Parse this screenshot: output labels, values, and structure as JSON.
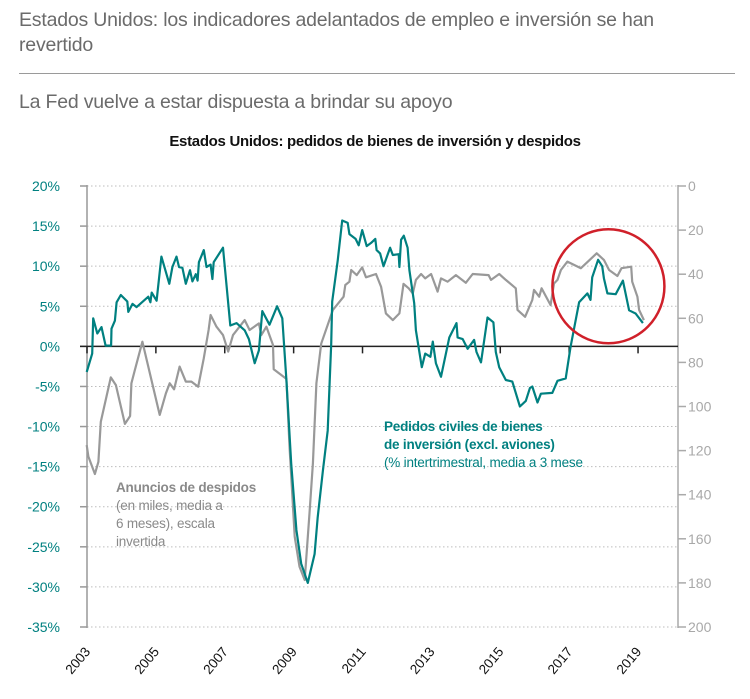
{
  "header": {
    "title": "Estados Unidos: los indicadores adelantados de empleo e inversión se han revertido",
    "subtitle": "La Fed vuelve a estar dispuesta a brindar su apoyo"
  },
  "chart_data": {
    "type": "line",
    "title": "Estados Unidos: pedidos de bienes de inversión y despidos",
    "x_ticks": [
      "2003",
      "2005",
      "2007",
      "2009",
      "2011",
      "2013",
      "2015",
      "2017",
      "2019"
    ],
    "xlim": [
      2003,
      2019.2
    ],
    "y_left": {
      "ticks": [
        "20%",
        "15%",
        "10%",
        "5%",
        "0%",
        "-5%",
        "-10%",
        "-15%",
        "-20%",
        "-25%",
        "-30%",
        "-35%"
      ],
      "range": [
        -35,
        20
      ],
      "color": "#008080"
    },
    "y_right": {
      "ticks": [
        "0",
        "20",
        "40",
        "60",
        "80",
        "100",
        "120",
        "140",
        "160",
        "180",
        "200"
      ],
      "range": [
        0,
        200
      ],
      "inverted": true,
      "color": "#999999"
    },
    "grid": "horizontal dotted",
    "colors": {
      "orders": "#008080",
      "layoffs": "#999999",
      "highlight_circle": "#d0202a"
    },
    "series": [
      {
        "name": "Pedidos civiles de bienes de inversión (excl. aviones)",
        "label_line1": "Pedidos civiles de bienes",
        "label_line2": "de inversión (excl. aviones)",
        "label_line3": "(% intertrimestral, media a 3 mese",
        "axis": "left",
        "points": [
          [
            2002.99,
            -3.2
          ],
          [
            2003.15,
            -0.9
          ],
          [
            2003.18,
            3.5
          ],
          [
            2003.3,
            1.6
          ],
          [
            2003.42,
            2.4
          ],
          [
            2003.54,
            0.1
          ],
          [
            2003.7,
            0.1
          ],
          [
            2003.71,
            2.2
          ],
          [
            2003.81,
            3.2
          ],
          [
            2003.86,
            5.5
          ],
          [
            2003.98,
            6.4
          ],
          [
            2004.17,
            5.6
          ],
          [
            2004.2,
            4.3
          ],
          [
            2004.32,
            5.3
          ],
          [
            2004.44,
            4.9
          ],
          [
            2004.78,
            6.2
          ],
          [
            2004.84,
            5.5
          ],
          [
            2004.88,
            6.7
          ],
          [
            2005.02,
            5.7
          ],
          [
            2005.16,
            11.2
          ],
          [
            2005.39,
            7.8
          ],
          [
            2005.48,
            9.9
          ],
          [
            2005.6,
            11.2
          ],
          [
            2005.67,
            9.9
          ],
          [
            2005.77,
            9.8
          ],
          [
            2005.87,
            7.8
          ],
          [
            2005.99,
            9.5
          ],
          [
            2006.06,
            8.1
          ],
          [
            2006.16,
            9.0
          ],
          [
            2006.21,
            8.2
          ],
          [
            2006.25,
            10.5
          ],
          [
            2006.39,
            12.0
          ],
          [
            2006.47,
            9.9
          ],
          [
            2006.59,
            10.2
          ],
          [
            2006.64,
            8.4
          ],
          [
            2006.68,
            10.5
          ],
          [
            2006.95,
            12.3
          ],
          [
            2007.16,
            2.6
          ],
          [
            2007.34,
            2.9
          ],
          [
            2007.58,
            2.0
          ],
          [
            2007.7,
            0.9
          ],
          [
            2007.87,
            -2.1
          ],
          [
            2007.99,
            -0.5
          ],
          [
            2008.09,
            4.4
          ],
          [
            2008.3,
            2.7
          ],
          [
            2008.52,
            5.0
          ],
          [
            2008.67,
            3.5
          ],
          [
            2008.79,
            -4.2
          ],
          [
            2008.93,
            -14.6
          ],
          [
            2009.08,
            -22.9
          ],
          [
            2009.22,
            -27.1
          ],
          [
            2009.41,
            -29.5
          ],
          [
            2009.61,
            -25.9
          ],
          [
            2009.7,
            -21.3
          ],
          [
            2009.85,
            -15.5
          ],
          [
            2009.99,
            -10.5
          ],
          [
            2010.09,
            0.3
          ],
          [
            2010.12,
            5.6
          ],
          [
            2010.28,
            10.7
          ],
          [
            2010.41,
            15.7
          ],
          [
            2010.57,
            15.4
          ],
          [
            2010.62,
            14.0
          ],
          [
            2010.8,
            13.4
          ],
          [
            2010.89,
            12.6
          ],
          [
            2010.99,
            14.5
          ],
          [
            2011.12,
            12.5
          ],
          [
            2011.25,
            12.9
          ],
          [
            2011.37,
            13.4
          ],
          [
            2011.41,
            12.0
          ],
          [
            2011.51,
            11.6
          ],
          [
            2011.61,
            10.0
          ],
          [
            2011.8,
            12.3
          ],
          [
            2011.88,
            11.4
          ],
          [
            2012.05,
            11.5
          ],
          [
            2012.07,
            9.9
          ],
          [
            2012.12,
            13.3
          ],
          [
            2012.2,
            13.8
          ],
          [
            2012.31,
            12.3
          ],
          [
            2012.36,
            9.5
          ],
          [
            2012.5,
            5.4
          ],
          [
            2012.55,
            2.0
          ],
          [
            2012.72,
            -2.6
          ],
          [
            2012.82,
            -0.9
          ],
          [
            2012.97,
            -1.3
          ],
          [
            2013.04,
            0.6
          ],
          [
            2013.13,
            -2.1
          ],
          [
            2013.28,
            -3.8
          ],
          [
            2013.52,
            1.1
          ],
          [
            2013.73,
            2.9
          ],
          [
            2013.76,
            1.1
          ],
          [
            2013.91,
            0.9
          ],
          [
            2014.05,
            -0.3
          ],
          [
            2014.24,
            0.8
          ],
          [
            2014.31,
            -0.7
          ],
          [
            2014.44,
            -2.0
          ],
          [
            2014.63,
            3.6
          ],
          [
            2014.8,
            3.0
          ],
          [
            2014.87,
            -0.7
          ],
          [
            2014.97,
            -2.6
          ],
          [
            2015.16,
            -4.2
          ],
          [
            2015.35,
            -4.4
          ],
          [
            2015.57,
            -7.5
          ],
          [
            2015.74,
            -6.8
          ],
          [
            2015.86,
            -5.2
          ],
          [
            2015.93,
            -5.0
          ],
          [
            2016.08,
            -7.0
          ],
          [
            2016.18,
            -5.9
          ],
          [
            2016.51,
            -5.8
          ],
          [
            2016.66,
            -4.3
          ],
          [
            2016.9,
            -4.0
          ],
          [
            2017.04,
            -0.1
          ],
          [
            2017.29,
            5.5
          ],
          [
            2017.53,
            6.6
          ],
          [
            2017.62,
            5.8
          ],
          [
            2017.67,
            8.6
          ],
          [
            2017.84,
            10.8
          ],
          [
            2017.96,
            10.0
          ],
          [
            2018.01,
            8.5
          ],
          [
            2018.11,
            6.6
          ],
          [
            2018.35,
            6.5
          ],
          [
            2018.56,
            8.2
          ],
          [
            2018.74,
            4.5
          ],
          [
            2018.93,
            4.1
          ],
          [
            2019.14,
            2.9
          ]
        ]
      },
      {
        "name": "Anuncios de despidos",
        "label_line1": "Anuncios de despidos",
        "label_line2": "(en miles, media a",
        "label_line3": "6 meses), escala",
        "label_line4": "invertida",
        "axis": "right",
        "points": [
          [
            2002.99,
            117.5
          ],
          [
            2003.04,
            122.7
          ],
          [
            2003.23,
            130.6
          ],
          [
            2003.33,
            125.1
          ],
          [
            2003.4,
            106.9
          ],
          [
            2003.69,
            86.8
          ],
          [
            2003.84,
            90.3
          ],
          [
            2004.1,
            107.9
          ],
          [
            2004.25,
            104.3
          ],
          [
            2004.29,
            89.5
          ],
          [
            2004.39,
            83.4
          ],
          [
            2004.61,
            70.6
          ],
          [
            2005.11,
            103.8
          ],
          [
            2005.29,
            94.0
          ],
          [
            2005.4,
            89.5
          ],
          [
            2005.53,
            92.2
          ],
          [
            2005.69,
            81.9
          ],
          [
            2005.87,
            88.7
          ],
          [
            2006.03,
            88.7
          ],
          [
            2006.23,
            91.0
          ],
          [
            2006.39,
            78.1
          ],
          [
            2006.53,
            65.3
          ],
          [
            2006.59,
            58.5
          ],
          [
            2006.76,
            63.8
          ],
          [
            2006.95,
            67.6
          ],
          [
            2007.1,
            75.1
          ],
          [
            2007.24,
            67.6
          ],
          [
            2007.58,
            60.8
          ],
          [
            2007.72,
            65.3
          ],
          [
            2007.99,
            62.3
          ],
          [
            2008.06,
            67.6
          ],
          [
            2008.21,
            63.8
          ],
          [
            2008.4,
            72.1
          ],
          [
            2008.42,
            83.1
          ],
          [
            2008.79,
            87.5
          ],
          [
            2008.88,
            118.0
          ],
          [
            2009.03,
            159.0
          ],
          [
            2009.17,
            172.6
          ],
          [
            2009.32,
            178.7
          ],
          [
            2009.37,
            168.0
          ],
          [
            2009.46,
            148.4
          ],
          [
            2009.56,
            125.8
          ],
          [
            2009.66,
            89.5
          ],
          [
            2009.8,
            71.5
          ],
          [
            2010.14,
            56.2
          ],
          [
            2010.45,
            50.2
          ],
          [
            2010.5,
            44.9
          ],
          [
            2010.62,
            43.4
          ],
          [
            2010.67,
            38.1
          ],
          [
            2010.83,
            40.4
          ],
          [
            2010.99,
            36.9
          ],
          [
            2011.1,
            41.4
          ],
          [
            2011.39,
            39.9
          ],
          [
            2011.54,
            45.7
          ],
          [
            2011.68,
            57.8
          ],
          [
            2011.88,
            60.8
          ],
          [
            2012.07,
            57.8
          ],
          [
            2012.19,
            44.4
          ],
          [
            2012.34,
            46.4
          ],
          [
            2012.46,
            48.7
          ],
          [
            2012.55,
            42.6
          ],
          [
            2012.7,
            39.9
          ],
          [
            2012.82,
            41.9
          ],
          [
            2012.99,
            39.9
          ],
          [
            2013.18,
            47.9
          ],
          [
            2013.28,
            41.9
          ],
          [
            2013.47,
            43.4
          ],
          [
            2013.71,
            40.4
          ],
          [
            2014.0,
            43.9
          ],
          [
            2014.2,
            39.9
          ],
          [
            2014.66,
            40.4
          ],
          [
            2014.73,
            42.6
          ],
          [
            2014.97,
            39.9
          ],
          [
            2015.16,
            42.6
          ],
          [
            2015.45,
            46.4
          ],
          [
            2015.5,
            56.2
          ],
          [
            2015.72,
            59.3
          ],
          [
            2015.93,
            51.7
          ],
          [
            2015.98,
            47.1
          ],
          [
            2016.13,
            50.2
          ],
          [
            2016.2,
            46.4
          ],
          [
            2016.46,
            54.0
          ],
          [
            2016.56,
            44.2
          ],
          [
            2016.66,
            42.6
          ],
          [
            2016.76,
            38.1
          ],
          [
            2016.95,
            34.3
          ],
          [
            2017.34,
            37.3
          ],
          [
            2017.8,
            30.5
          ],
          [
            2018.01,
            33.5
          ],
          [
            2018.16,
            38.1
          ],
          [
            2018.4,
            40.8
          ],
          [
            2018.52,
            37.3
          ],
          [
            2018.8,
            36.6
          ],
          [
            2018.83,
            43.4
          ],
          [
            2018.98,
            50.2
          ],
          [
            2019.03,
            56.2
          ],
          [
            2019.17,
            60.8
          ]
        ]
      }
    ]
  }
}
